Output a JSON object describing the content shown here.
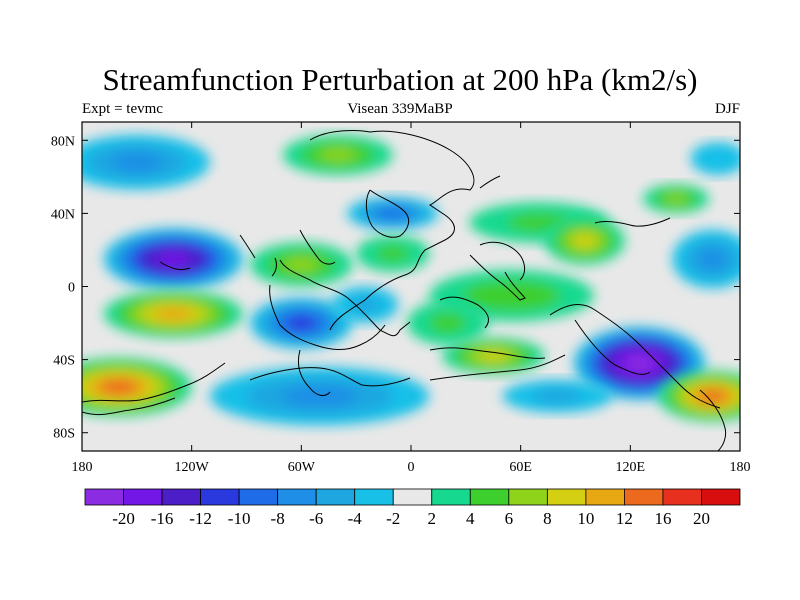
{
  "chart_data": {
    "type": "heatmap",
    "title": "Streamfunction Perturbation at 200 hPa (km2/s)",
    "subtitle_left": "Expt = tevmc",
    "subtitle_center": "Visean 339MaBP",
    "subtitle_right": "DJF",
    "x_range": [
      -180,
      180
    ],
    "y_range": [
      -90,
      90
    ],
    "x_ticks": [
      {
        "value": -180,
        "label": "180"
      },
      {
        "value": -120,
        "label": "120W"
      },
      {
        "value": -60,
        "label": "60W"
      },
      {
        "value": 0,
        "label": "0"
      },
      {
        "value": 60,
        "label": "60E"
      },
      {
        "value": 120,
        "label": "120E"
      },
      {
        "value": 180,
        "label": "180"
      }
    ],
    "y_ticks": [
      {
        "value": 80,
        "label": "80N"
      },
      {
        "value": 40,
        "label": "40N"
      },
      {
        "value": 0,
        "label": "0"
      },
      {
        "value": -40,
        "label": "40S"
      },
      {
        "value": -80,
        "label": "80S"
      }
    ],
    "levels": [
      -20,
      -16,
      -12,
      -10,
      -8,
      -6,
      -4,
      -2,
      2,
      4,
      6,
      8,
      10,
      12,
      16,
      20
    ],
    "level_labels": [
      "-20",
      "-16",
      "-12",
      "-10",
      "-8",
      "-6",
      "-4",
      "-2",
      "2",
      "4",
      "6",
      "8",
      "10",
      "12",
      "16",
      "20"
    ],
    "colors": [
      "#8b2be2",
      "#7217e6",
      "#4c1ec8",
      "#2a39de",
      "#1e6ce8",
      "#1e8ee6",
      "#1fa6e0",
      "#18c0e8",
      "#e8e8e8",
      "#16d98f",
      "#3ccf2e",
      "#8fd31a",
      "#d4cf12",
      "#e8a814",
      "#ec6a1e",
      "#e8301e",
      "#d80e0e"
    ],
    "anomalies": [
      {
        "lon": -40,
        "lat": 72,
        "value": 6,
        "rx": 30,
        "ry": 11
      },
      {
        "lon": -150,
        "lat": 68,
        "value": -6,
        "rx": 40,
        "ry": 15
      },
      {
        "lon": 168,
        "lat": 70,
        "value": -3,
        "rx": 15,
        "ry": 9
      },
      {
        "lon": -10,
        "lat": 40,
        "value": -8,
        "rx": 25,
        "ry": 9
      },
      {
        "lon": 70,
        "lat": 35,
        "value": 4,
        "rx": 38,
        "ry": 11
      },
      {
        "lon": 95,
        "lat": 25,
        "value": 8,
        "rx": 22,
        "ry": 13
      },
      {
        "lon": 145,
        "lat": 48,
        "value": 6,
        "rx": 18,
        "ry": 8
      },
      {
        "lon": -130,
        "lat": 15,
        "value": -16,
        "rx": 38,
        "ry": 17
      },
      {
        "lon": 165,
        "lat": 15,
        "value": -6,
        "rx": 22,
        "ry": 16
      },
      {
        "lon": -60,
        "lat": 12,
        "value": 6,
        "rx": 28,
        "ry": 12
      },
      {
        "lon": -10,
        "lat": 18,
        "value": 4,
        "rx": 20,
        "ry": 10
      },
      {
        "lon": 55,
        "lat": -5,
        "value": 5,
        "rx": 45,
        "ry": 14
      },
      {
        "lon": 20,
        "lat": -20,
        "value": 4,
        "rx": 22,
        "ry": 12
      },
      {
        "lon": -130,
        "lat": -15,
        "value": 10,
        "rx": 38,
        "ry": 13
      },
      {
        "lon": -60,
        "lat": -20,
        "value": -10,
        "rx": 28,
        "ry": 14
      },
      {
        "lon": -25,
        "lat": -10,
        "value": -4,
        "rx": 18,
        "ry": 10
      },
      {
        "lon": 45,
        "lat": -38,
        "value": 8,
        "rx": 28,
        "ry": 10
      },
      {
        "lon": 125,
        "lat": -42,
        "value": -20,
        "rx": 36,
        "ry": 20
      },
      {
        "lon": -160,
        "lat": -55,
        "value": 12,
        "rx": 40,
        "ry": 16
      },
      {
        "lon": -50,
        "lat": -60,
        "value": -6,
        "rx": 60,
        "ry": 16
      },
      {
        "lon": 165,
        "lat": -60,
        "value": 12,
        "rx": 30,
        "ry": 14
      },
      {
        "lon": 80,
        "lat": -60,
        "value": -4,
        "rx": 30,
        "ry": 9
      }
    ]
  }
}
